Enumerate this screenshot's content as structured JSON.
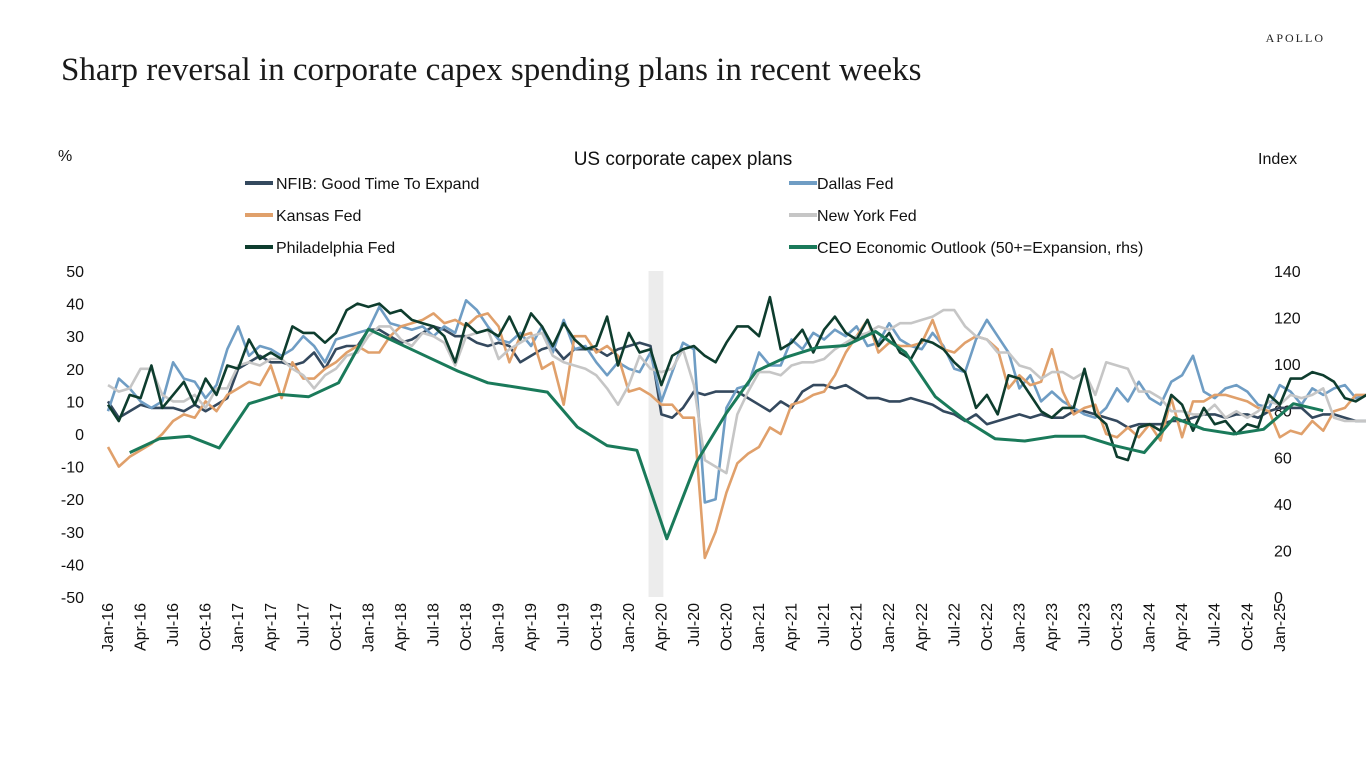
{
  "brand": "APOLLO",
  "headline": "Sharp reversal in corporate capex spending plans in recent weeks",
  "chart_data": {
    "type": "line",
    "title": "US corporate capex plans",
    "left_axis_unit": "%",
    "right_axis_unit": "Index",
    "left_ylim": [
      -50,
      50
    ],
    "right_ylim": [
      0,
      140
    ],
    "left_ticks": [
      50,
      40,
      30,
      20,
      10,
      0,
      -10,
      -20,
      -30,
      -40,
      -50
    ],
    "right_ticks": [
      140,
      120,
      100,
      80,
      60,
      40,
      20,
      0
    ],
    "x_tick_labels": [
      "Jan-16",
      "Apr-16",
      "Jul-16",
      "Oct-16",
      "Jan-17",
      "Apr-17",
      "Jul-17",
      "Oct-17",
      "Jan-18",
      "Apr-18",
      "Jul-18",
      "Oct-18",
      "Jan-19",
      "Apr-19",
      "Jul-19",
      "Oct-19",
      "Jan-20",
      "Apr-20",
      "Jul-20",
      "Oct-20",
      "Jan-21",
      "Apr-21",
      "Jul-21",
      "Oct-21",
      "Jan-22",
      "Apr-22",
      "Jul-22",
      "Oct-22",
      "Jan-23",
      "Apr-23",
      "Jul-23",
      "Oct-23",
      "Jan-24",
      "Apr-24",
      "Jul-24",
      "Oct-24",
      "Jan-25"
    ],
    "x_start": "Jan-16",
    "recession_shading": [
      "Mar-20",
      "Apr-20"
    ],
    "legend_placement": "top, two columns",
    "series": [
      {
        "name": "NFIB: Good Time To Expand",
        "color": "#34495e",
        "axis": "left",
        "values": [
          10,
          5,
          7,
          9,
          8,
          8,
          8,
          7,
          9,
          7,
          9,
          11,
          20,
          22,
          24,
          22,
          22,
          21,
          22,
          25,
          20,
          26,
          27,
          27,
          32,
          32,
          30,
          28,
          29,
          31,
          33,
          32,
          30,
          30,
          28,
          27,
          28,
          27,
          22,
          24,
          26,
          27,
          23,
          26,
          26,
          26,
          24,
          26,
          27,
          28,
          27,
          6,
          5,
          8,
          13,
          12,
          13,
          13,
          13,
          11,
          9,
          7,
          10,
          8,
          13,
          15,
          15,
          14,
          15,
          13,
          11,
          11,
          10,
          10,
          11,
          10,
          9,
          7,
          6,
          4,
          6,
          3,
          4,
          5,
          6,
          5,
          6,
          5,
          5,
          7,
          7,
          6,
          5,
          4,
          2,
          3,
          3,
          3,
          4,
          4,
          5,
          6,
          6,
          5,
          6,
          6,
          5,
          7,
          8,
          8,
          8,
          5,
          6,
          6,
          5,
          4,
          4,
          4,
          4,
          5,
          4,
          4,
          6,
          9,
          12,
          14,
          20,
          18,
          16,
          14
        ]
      },
      {
        "name": "Dallas Fed",
        "color": "#6f9dc4",
        "axis": "left",
        "values": [
          7,
          17,
          14,
          10,
          8,
          10,
          22,
          17,
          16,
          11,
          15,
          26,
          33,
          24,
          27,
          26,
          24,
          26,
          30,
          27,
          22,
          29,
          30,
          31,
          32,
          39,
          34,
          33,
          32,
          33,
          30,
          33,
          31,
          41,
          38,
          33,
          29,
          28,
          31,
          27,
          33,
          25,
          35,
          26,
          27,
          22,
          18,
          22,
          20,
          19,
          25,
          10,
          19,
          28,
          26,
          -21,
          -20,
          8,
          14,
          15,
          25,
          21,
          21,
          29,
          26,
          31,
          29,
          32,
          30,
          33,
          27,
          28,
          34,
          29,
          27,
          26,
          31,
          27,
          20,
          19,
          29,
          35,
          30,
          25,
          14,
          18,
          10,
          13,
          10,
          8,
          6,
          5,
          8,
          14,
          10,
          16,
          11,
          9,
          16,
          18,
          24,
          13,
          11,
          14,
          15,
          13,
          9,
          8,
          15,
          13,
          9,
          14,
          12,
          14,
          15,
          11,
          12,
          14,
          23,
          21,
          24,
          14,
          12,
          17,
          24,
          27,
          21
        ]
      },
      {
        "name": "Kansas Fed",
        "color": "#e0a06b",
        "axis": "left",
        "values": [
          -4,
          -10,
          -7,
          -5,
          -3,
          0,
          4,
          6,
          5,
          10,
          7,
          12,
          14,
          16,
          15,
          21,
          11,
          22,
          17,
          17,
          20,
          22,
          25,
          27,
          25,
          25,
          30,
          33,
          34,
          35,
          37,
          34,
          35,
          33,
          36,
          37,
          33,
          22,
          30,
          31,
          20,
          22,
          9,
          30,
          30,
          25,
          27,
          24,
          13,
          14,
          12,
          9,
          9,
          5,
          5,
          -38,
          -30,
          -18,
          -9,
          -6,
          -4,
          2,
          0,
          9,
          10,
          12,
          13,
          18,
          25,
          30,
          35,
          25,
          28,
          27,
          27,
          28,
          35,
          26,
          25,
          28,
          30,
          29,
          26,
          14,
          18,
          15,
          16,
          26,
          13,
          6,
          8,
          9,
          0,
          -1,
          2,
          -1,
          3,
          -2,
          11,
          -1,
          10,
          10,
          12,
          12,
          11,
          10,
          8,
          7,
          -1,
          1,
          0,
          4,
          1,
          7,
          8,
          12,
          12,
          4,
          -5,
          10,
          15,
          7,
          4,
          3,
          10,
          12,
          21,
          14
        ]
      },
      {
        "name": "New York Fed",
        "color": "#c6c6c6",
        "axis": "left",
        "values": [
          15,
          13,
          14,
          20,
          20,
          12,
          10,
          10,
          12,
          8,
          14,
          14,
          21,
          22,
          21,
          23,
          23,
          20,
          18,
          14,
          18,
          20,
          24,
          25,
          30,
          33,
          33,
          29,
          27,
          31,
          30,
          28,
          21,
          30,
          31,
          32,
          23,
          26,
          28,
          30,
          31,
          24,
          22,
          21,
          20,
          18,
          14,
          9,
          15,
          24,
          20,
          19,
          20,
          26,
          15,
          -8,
          -10,
          -12,
          6,
          13,
          19,
          19,
          18,
          21,
          22,
          22,
          23,
          26,
          28,
          30,
          31,
          33,
          32,
          34,
          34,
          35,
          36,
          38,
          38,
          33,
          30,
          29,
          25,
          25,
          21,
          20,
          17,
          19,
          19,
          17,
          19,
          12,
          22,
          21,
          20,
          13,
          13,
          11,
          7,
          7,
          6,
          6,
          9,
          5,
          7,
          5,
          7,
          10,
          9,
          12,
          11,
          12,
          14,
          5,
          4,
          4,
          4,
          2,
          3,
          5,
          9,
          8,
          7,
          6,
          7,
          10,
          10,
          13,
          15,
          16,
          16
        ]
      },
      {
        "name": "Philadelphia Fed",
        "color": "#0e3d2e",
        "axis": "left",
        "values": [
          9,
          4,
          12,
          11,
          21,
          8,
          12,
          16,
          9,
          17,
          12,
          21,
          20,
          29,
          23,
          25,
          23,
          33,
          31,
          31,
          28,
          31,
          38,
          40,
          39,
          40,
          37,
          38,
          35,
          34,
          33,
          30,
          22,
          34,
          31,
          32,
          30,
          36,
          29,
          37,
          33,
          27,
          34,
          29,
          26,
          27,
          36,
          21,
          31,
          25,
          26,
          15,
          24,
          26,
          27,
          24,
          22,
          28,
          33,
          33,
          30,
          42,
          26,
          28,
          32,
          25,
          32,
          36,
          31,
          29,
          35,
          27,
          31,
          25,
          23,
          29,
          28,
          26,
          22,
          19,
          8,
          12,
          6,
          18,
          17,
          12,
          7,
          5,
          8,
          8,
          20,
          6,
          3,
          -7,
          -8,
          2,
          3,
          1,
          12,
          9,
          1,
          8,
          3,
          4,
          0,
          3,
          2,
          12,
          9,
          17,
          17,
          19,
          18,
          16,
          11,
          10,
          12,
          14,
          20,
          28,
          31,
          29,
          39,
          9
        ]
      },
      {
        "name": "CEO Economic Outlook (50+=Expansion, rhs)",
        "color": "#1a7a5a",
        "axis": "right",
        "values": [
          62,
          68,
          69,
          64,
          83,
          87,
          86,
          92,
          115,
          109,
          103,
          97,
          92,
          90,
          88,
          73,
          65,
          63,
          25,
          58,
          79,
          97,
          103,
          107,
          108,
          114,
          105,
          86,
          76,
          68,
          67,
          69,
          69,
          65,
          62,
          77,
          72,
          70,
          72,
          83,
          80
        ]
      }
    ]
  }
}
